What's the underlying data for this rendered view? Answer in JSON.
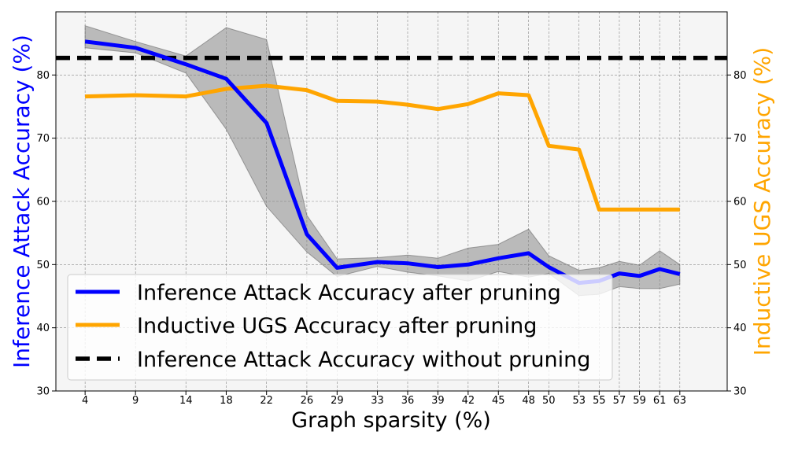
{
  "chart_data": {
    "type": "line",
    "xlabel": "Graph sparsity (%)",
    "ylabel_left": "Inference Attack Accuracy (%)",
    "ylabel_right": "Inductive UGS Accuracy (%)",
    "x": [
      4,
      9,
      14,
      18,
      22,
      26,
      29,
      33,
      36,
      39,
      42,
      45,
      48,
      50,
      53,
      55,
      57,
      59,
      61,
      63
    ],
    "xlim": [
      1.1,
      67.7
    ],
    "ylim": [
      30,
      90
    ],
    "yticks": [
      30,
      40,
      50,
      60,
      70,
      80
    ],
    "grid": true,
    "legend_position": "lower-left",
    "series": [
      {
        "name": "Inference Attack Accuracy after pruning",
        "axis": "left",
        "color": "#0000ff",
        "values": [
          85.3,
          84.3,
          81.7,
          79.4,
          72.4,
          54.8,
          49.5,
          50.4,
          50.2,
          49.6,
          50.0,
          51.0,
          51.8,
          49.6,
          47.1,
          47.4,
          48.6,
          48.2,
          49.3,
          48.5
        ],
        "band_upper": [
          87.8,
          85.3,
          83.0,
          87.5,
          85.6,
          57.8,
          50.9,
          51.1,
          51.5,
          51.0,
          52.6,
          53.2,
          55.6,
          51.4,
          49.1,
          49.5,
          50.5,
          49.9,
          52.2,
          50.0
        ],
        "band_lower": [
          84.3,
          83.5,
          80.3,
          71.4,
          59.2,
          52.0,
          48.1,
          49.7,
          48.8,
          48.2,
          47.4,
          48.9,
          48.0,
          48.6,
          45.1,
          45.3,
          46.5,
          46.2,
          46.2,
          46.9
        ]
      },
      {
        "name": "Inductive UGS Accuracy after pruning",
        "axis": "right",
        "color": "#ffa500",
        "values": [
          76.6,
          76.8,
          76.6,
          77.8,
          78.3,
          77.6,
          75.9,
          75.8,
          75.3,
          74.6,
          75.4,
          77.1,
          76.8,
          68.8,
          68.2,
          58.7,
          58.7,
          58.7,
          58.7,
          58.7
        ]
      },
      {
        "name": "Inference Attack Accuracy without pruning",
        "axis": "left",
        "color": "#000000",
        "style": "dashed",
        "constant": 82.7
      }
    ]
  }
}
